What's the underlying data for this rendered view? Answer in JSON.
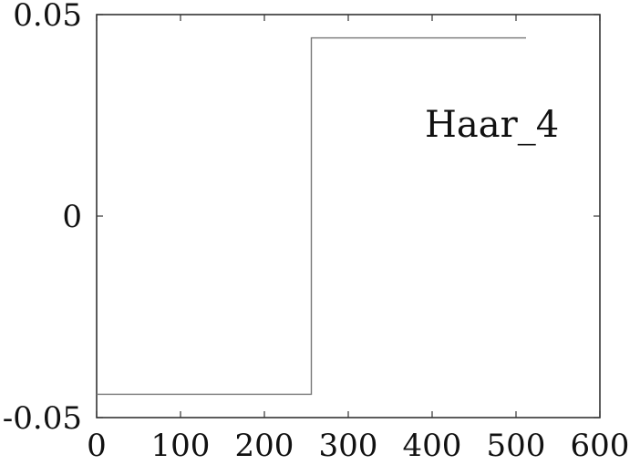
{
  "chart_data": {
    "type": "line",
    "title": "",
    "xlabel": "",
    "ylabel": "",
    "xlim": [
      0,
      600
    ],
    "ylim": [
      -0.05,
      0.05
    ],
    "x_ticks": [
      0,
      100,
      200,
      300,
      400,
      500,
      600
    ],
    "y_ticks": [
      -0.05,
      0,
      0.05
    ],
    "x_tick_labels": [
      "0",
      "100",
      "200",
      "300",
      "400",
      "500",
      "600"
    ],
    "y_tick_labels": [
      "-0.05",
      "0",
      "0.05"
    ],
    "grid": false,
    "annotation": "Haar_4",
    "series": [
      {
        "color": "#777777",
        "step": true,
        "x": [
          0,
          256,
          256,
          512
        ],
        "y": [
          -0.0442,
          -0.0442,
          0.0442,
          0.0442
        ]
      }
    ]
  }
}
